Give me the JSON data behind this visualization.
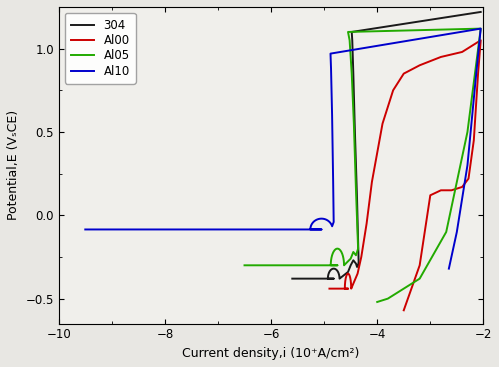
{
  "xlabel": "Current density,i (10⁺A/cm²)",
  "ylabel": "Potential,E (VₛCE)",
  "xlim": [
    -10,
    -2
  ],
  "ylim": [
    -0.65,
    1.25
  ],
  "xticks": [
    -10,
    -8,
    -6,
    -4,
    -2
  ],
  "yticks": [
    -0.5,
    0.0,
    0.5,
    1.0
  ],
  "legend_labels": [
    "304",
    "Al00",
    "Al05",
    "Al10"
  ],
  "colors": [
    "#1a1a1a",
    "#cc0000",
    "#22aa00",
    "#0000cc"
  ],
  "lw": 1.4,
  "bg_color": "#f0efeb",
  "fig_color": "#e8e7e3"
}
